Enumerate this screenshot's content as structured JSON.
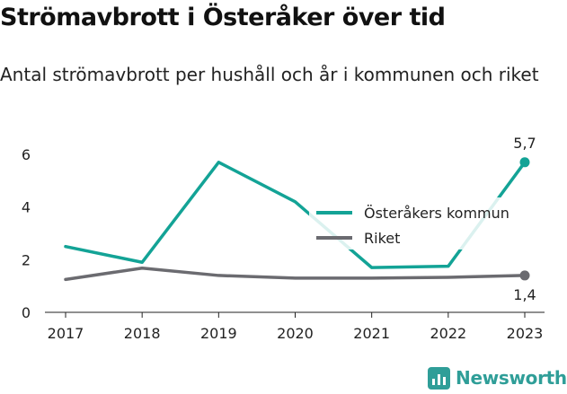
{
  "header": {
    "title": "Strömavbrott i Österåker över tid",
    "subtitle": "Antal strömavbrott per hushåll och år i kommunen och riket"
  },
  "brand": {
    "name": "Newsworthy",
    "icon": "bar-chart-icon",
    "color": "#2f9e98"
  },
  "chart_data": {
    "type": "line",
    "x": [
      "2017",
      "2018",
      "2019",
      "2020",
      "2021",
      "2022",
      "2023"
    ],
    "ylim": [
      0,
      6.5
    ],
    "yticks": [
      "0",
      "2",
      "4",
      "6"
    ],
    "grid": false,
    "legend_position": "center-right",
    "series": [
      {
        "name": "Österåkers kommun",
        "color": "#13a396",
        "values": [
          2.5,
          1.9,
          5.7,
          4.2,
          1.7,
          1.75,
          5.7
        ],
        "end_label": "5,7"
      },
      {
        "name": "Riket",
        "color": "#6b6b70",
        "values": [
          1.25,
          1.68,
          1.4,
          1.3,
          1.3,
          1.33,
          1.4
        ],
        "end_label": "1,4"
      }
    ]
  }
}
